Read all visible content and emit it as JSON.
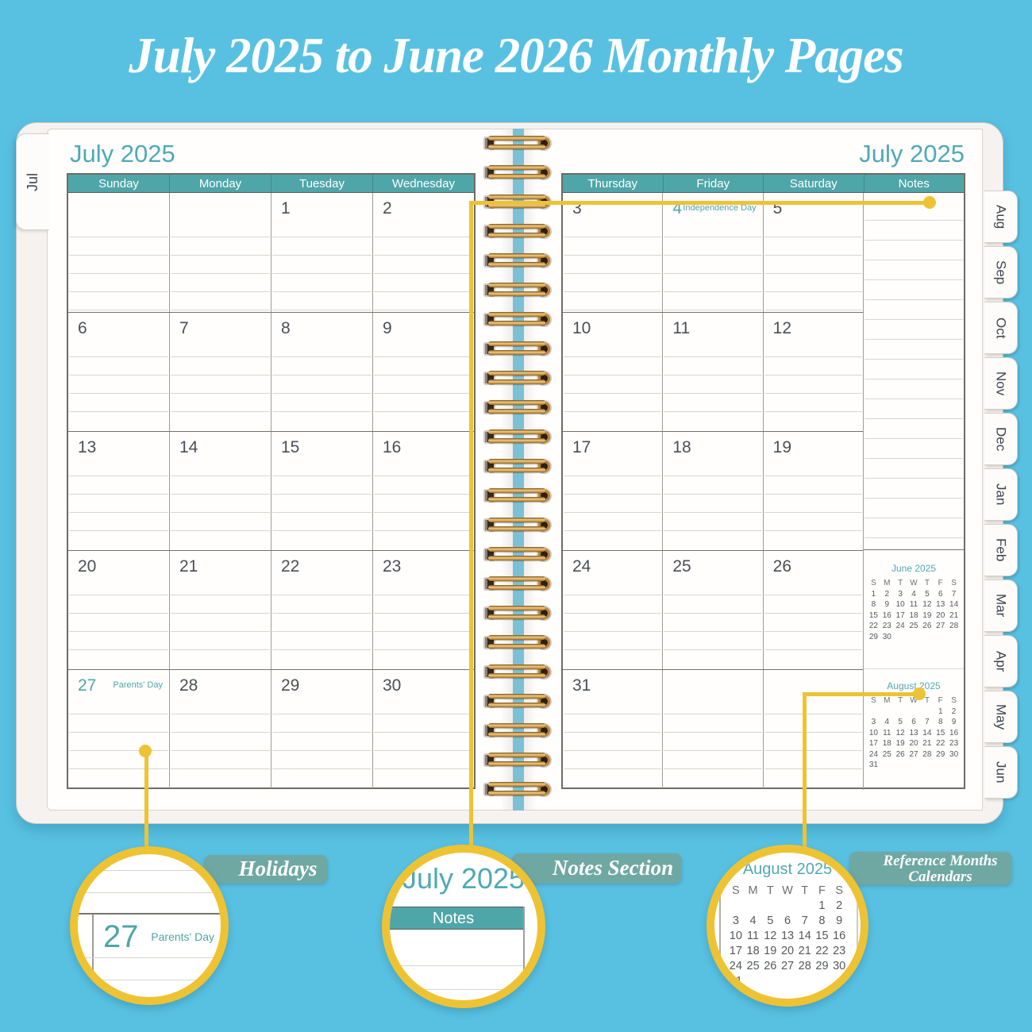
{
  "title": "July 2025 to June 2026 Monthly Pages",
  "planner": {
    "left_page": {
      "tab": "Jul",
      "month_title": "July 2025",
      "day_headers": [
        "Sunday",
        "Monday",
        "Tuesday",
        "Wednesday"
      ],
      "weeks": [
        [
          "",
          "",
          "1",
          "2"
        ],
        [
          "6",
          "7",
          "8",
          "9"
        ],
        [
          "13",
          "14",
          "15",
          "16"
        ],
        [
          "20",
          "21",
          "22",
          "23"
        ],
        [
          "27",
          "28",
          "29",
          "30"
        ]
      ],
      "holidays": [
        {
          "row": 4,
          "col": 0,
          "date": "27",
          "label": "Parents' Day"
        }
      ]
    },
    "right_page": {
      "month_title": "July 2025",
      "day_headers": [
        "Thursday",
        "Friday",
        "Saturday",
        "Notes"
      ],
      "weeks": [
        [
          "3",
          "4",
          "5"
        ],
        [
          "10",
          "11",
          "12"
        ],
        [
          "17",
          "18",
          "19"
        ],
        [
          "24",
          "25",
          "26"
        ],
        [
          "31",
          "",
          ""
        ]
      ],
      "holidays": [
        {
          "row": 0,
          "col": 1,
          "date": "4",
          "label": "Independence Day"
        }
      ]
    },
    "side_tabs": [
      "Aug",
      "Sep",
      "Oct",
      "Nov",
      "Dec",
      "Jan",
      "Feb",
      "Mar",
      "Apr",
      "May",
      "Jun"
    ],
    "mini_calendars": [
      {
        "title": "June 2025",
        "day_header": [
          "S",
          "M",
          "T",
          "W",
          "T",
          "F",
          "S"
        ],
        "weeks": [
          [
            "1",
            "2",
            "3",
            "4",
            "5",
            "6",
            "7"
          ],
          [
            "8",
            "9",
            "10",
            "11",
            "12",
            "13",
            "14"
          ],
          [
            "15",
            "16",
            "17",
            "18",
            "19",
            "20",
            "21"
          ],
          [
            "22",
            "23",
            "24",
            "25",
            "26",
            "27",
            "28"
          ],
          [
            "29",
            "30",
            "",
            "",
            "",
            "",
            ""
          ]
        ]
      },
      {
        "title": "August 2025",
        "day_header": [
          "S",
          "M",
          "T",
          "W",
          "T",
          "F",
          "S"
        ],
        "weeks": [
          [
            "",
            "",
            "",
            "",
            "",
            "1",
            "2"
          ],
          [
            "3",
            "4",
            "5",
            "6",
            "7",
            "8",
            "9"
          ],
          [
            "10",
            "11",
            "12",
            "13",
            "14",
            "15",
            "16"
          ],
          [
            "17",
            "18",
            "19",
            "20",
            "21",
            "22",
            "23"
          ],
          [
            "24",
            "25",
            "26",
            "27",
            "28",
            "29",
            "30"
          ],
          [
            "31",
            "",
            "",
            "",
            "",
            "",
            ""
          ]
        ]
      }
    ]
  },
  "callouts": {
    "holidays": {
      "label": "Holidays",
      "magnified": {
        "date": "27",
        "holiday": "Parents' Day"
      }
    },
    "notes": {
      "label": "Notes Section",
      "magnified": {
        "month": "July 2025",
        "header": "Notes"
      }
    },
    "reference": {
      "label_line1": "Reference Months",
      "label_line2": "Calendars"
    }
  },
  "colors": {
    "background": "#58C1E2",
    "teal_header": "#4FA6A9",
    "teal_text": "#4FA9B4",
    "accent_yellow": "#EEC333",
    "plaque_teal": "#6FA8A3",
    "wire_gold": "#D89A52"
  }
}
